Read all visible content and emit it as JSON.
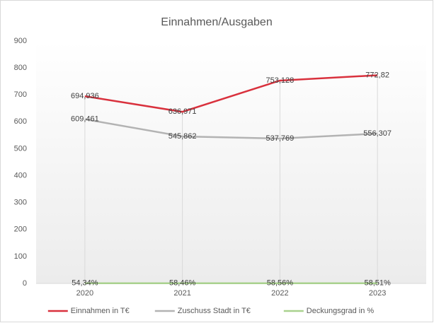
{
  "chart_data": {
    "type": "line",
    "title": "Einnahmen/Ausgaben",
    "categories": [
      "2020",
      "2021",
      "2022",
      "2023"
    ],
    "series": [
      {
        "name": "Einnahmen in T€",
        "color": "#d9313d",
        "values": [
          694.936,
          636.971,
          753.128,
          772.82
        ],
        "value_labels": [
          "694,936",
          "636,971",
          "753,128",
          "772,82"
        ]
      },
      {
        "name": "Zuschuss Stadt in T€",
        "color": "#b3b3b3",
        "values": [
          609.461,
          545.862,
          537.769,
          556.307
        ],
        "value_labels": [
          "609,461",
          "545,862",
          "537,769",
          "556,307"
        ]
      },
      {
        "name": "Deckungsgrad in %",
        "color": "#a9d18e",
        "values": [
          0.5434,
          0.5846,
          0.5856,
          0.5851
        ],
        "value_labels": [
          "54,34%",
          "58,46%",
          "58,56%",
          "58,51%"
        ]
      }
    ],
    "ylim": [
      0,
      900
    ],
    "yticks": [
      0,
      100,
      200,
      300,
      400,
      500,
      600,
      700,
      800,
      900
    ],
    "legend": "bottom",
    "drop_lines": true
  }
}
